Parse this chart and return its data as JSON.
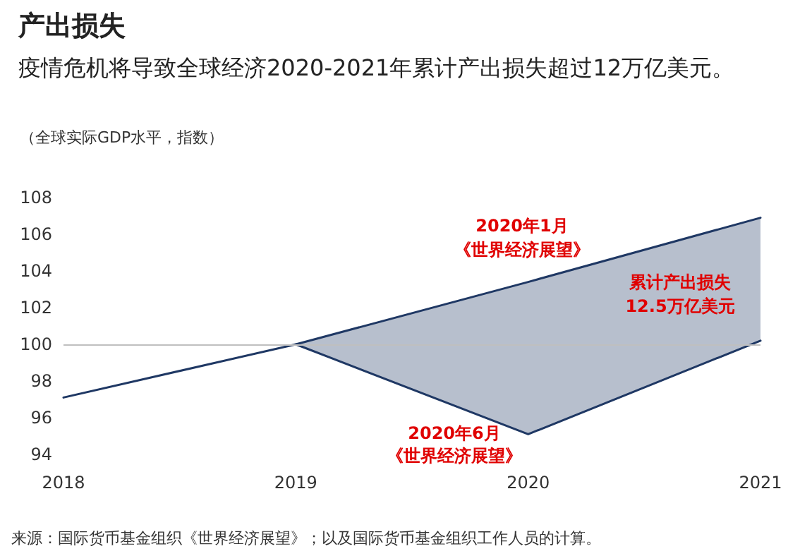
{
  "chart_data": {
    "type": "line",
    "title": "产出损失",
    "subtitle": "疫情危机将导致全球经济2020-2021年累计产出损失超过12万亿美元。",
    "ylabel": "（全球实际GDP水平，指数）",
    "categories": [
      "2018",
      "2019",
      "2020",
      "2021"
    ],
    "series": [
      {
        "color": "#1f3864",
        "values": [
          97.1,
          100,
          103.4,
          106.9
        ]
      },
      {
        "color": "#1f3864",
        "values": [
          null,
          100,
          95.1,
          100.2
        ],
        "lower": [
          null,
          100,
          95.1,
          100.2
        ],
        "upper": [
          null,
          100,
          103.4,
          106.9
        ]
      }
    ],
    "ylim": [
      94,
      108
    ],
    "yticks": [
      94,
      96,
      98,
      100,
      102,
      104,
      106,
      108
    ],
    "grid": false,
    "marker": "none",
    "line_style": "solid",
    "ref_lines": [
      {
        "axis": "y",
        "value": 100,
        "color": "#bfbfbf"
      }
    ],
    "annotations": [
      "2020年1月",
      "《世界经济展望》",
      "累计产出损失",
      "12.5万亿美元",
      "2020年6月",
      "《世界经济展望》",
      "来源：国际货币基金组织《世界经济展望》；以及国际货币基金组织工作人员的计算。"
    ]
  }
}
